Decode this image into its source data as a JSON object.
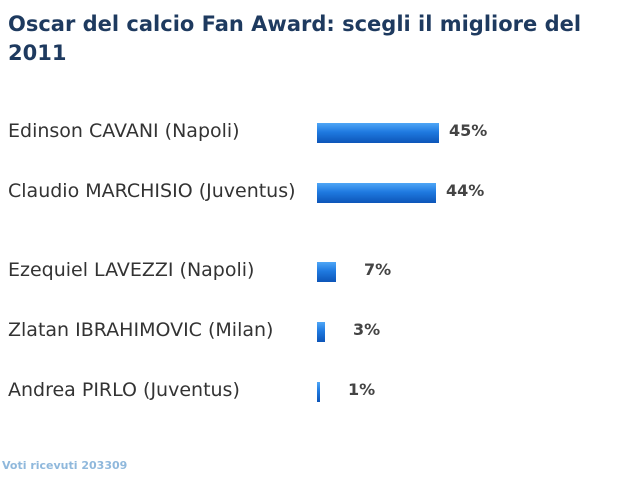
{
  "poll": {
    "title": "Oscar del calcio Fan Award: scegli il migliore del 2011",
    "bar_color": "#1f7ae0",
    "options": [
      {
        "label": "Edinson CAVANI (Napoli)",
        "percent_label": "45%",
        "percent": 45
      },
      {
        "label": "Claudio MARCHISIO (Juventus)",
        "percent_label": "44%",
        "percent": 44
      },
      {
        "label": "Ezequiel LAVEZZI (Napoli)",
        "percent_label": "7%",
        "percent": 7
      },
      {
        "label": "Zlatan IBRAHIMOVIC (Milan)",
        "percent_label": "3%",
        "percent": 3
      },
      {
        "label": "Andrea PIRLO (Juventus)",
        "percent_label": "1%",
        "percent": 1
      }
    ]
  },
  "footer": {
    "votes_text": "Voti ricevuti 203309"
  }
}
